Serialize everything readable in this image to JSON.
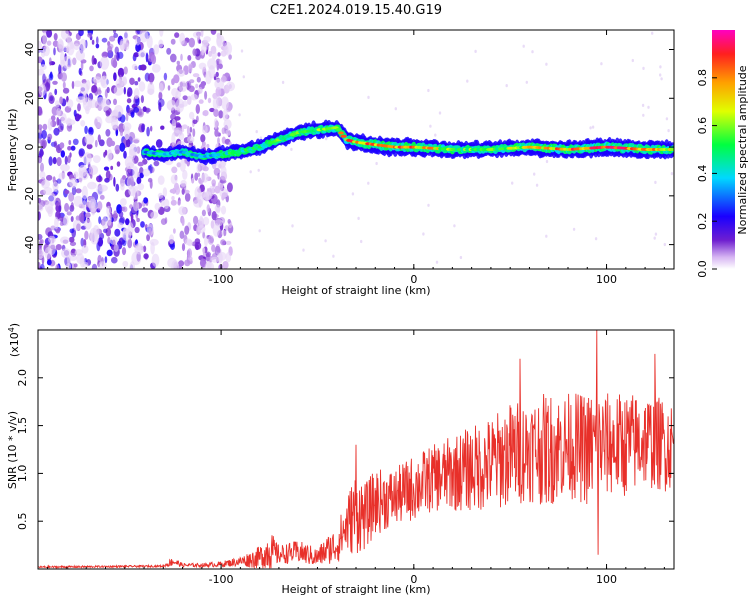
{
  "title": "C2E1.2024.019.15.40.G19",
  "chart_data": [
    {
      "type": "heatmap",
      "xlabel": "Height of straight line (km)",
      "ylabel": "Frequency (Hz)",
      "xlim": [
        -195,
        135
      ],
      "ylim": [
        -50,
        48
      ],
      "x_ticks": [
        -100,
        0,
        100
      ],
      "x_tick_labels": [
        "-100",
        "0",
        "100"
      ],
      "y_ticks": [
        -40,
        -20,
        0,
        20,
        40
      ],
      "y_tick_labels": [
        "-40",
        "-20",
        "0",
        "20",
        "40"
      ],
      "colorbar": {
        "label": "Normalized spectral amplitude",
        "range": [
          0,
          1
        ],
        "ticks": [
          0.0,
          0.2,
          0.4,
          0.6,
          0.8
        ],
        "tick_labels": [
          "0.0",
          "0.2",
          "0.4",
          "0.6",
          "0.8"
        ],
        "colormap": [
          "#ffffff",
          "#d6b4f2",
          "#6f1fd0",
          "#1a00ff",
          "#00d8ff",
          "#00ff40",
          "#e0ff00",
          "#ffa000",
          "#ff1f1f",
          "#ff00c0"
        ]
      },
      "ridge": {
        "x": [
          -140,
          -130,
          -120,
          -110,
          -100,
          -90,
          -80,
          -70,
          -60,
          -50,
          -40,
          -35,
          -30,
          -20,
          -10,
          0,
          20,
          40,
          60,
          80,
          100,
          120,
          135
        ],
        "y": [
          -2,
          -3,
          -2,
          -4,
          -3,
          -2,
          0,
          3,
          6,
          7,
          8,
          3,
          2,
          1,
          0,
          0,
          -1,
          -1,
          0,
          -1,
          0,
          -1,
          -1
        ],
        "amplitude": [
          0.3,
          0.35,
          0.4,
          0.35,
          0.45,
          0.5,
          0.5,
          0.55,
          0.55,
          0.6,
          0.65,
          0.8,
          0.85,
          0.85,
          0.9,
          0.85,
          0.6,
          0.55,
          0.7,
          0.8,
          0.9,
          0.85,
          0.6
        ]
      },
      "noise_region_x": [
        -195,
        -95
      ]
    },
    {
      "type": "line",
      "xlabel": "Height of straight line (km)",
      "ylabel": "SNR (10 * v/v)",
      "y_scale_label": "(x10",
      "y_scale_exponent": "4",
      "y_scale_suffix": ")",
      "xlim": [
        -195,
        135
      ],
      "ylim": [
        0,
        2.5
      ],
      "x_ticks": [
        -100,
        0,
        100
      ],
      "x_tick_labels": [
        "-100",
        "0",
        "100"
      ],
      "y_ticks": [
        0.5,
        1.0,
        1.5,
        2.0
      ],
      "y_tick_labels": [
        "0.5",
        "1.0",
        "1.5",
        "2.0"
      ],
      "line_color": "#e8302a",
      "envelope": {
        "x": [
          -195,
          -130,
          -125,
          -120,
          -110,
          -100,
          -90,
          -80,
          -75,
          -70,
          -60,
          -50,
          -45,
          -40,
          -35,
          -30,
          -25,
          -20,
          -10,
          0,
          10,
          20,
          30,
          40,
          50,
          60,
          70,
          80,
          90,
          95,
          100,
          110,
          120,
          130,
          135
        ],
        "mean": [
          0.02,
          0.03,
          0.08,
          0.04,
          0.04,
          0.05,
          0.08,
          0.12,
          0.2,
          0.15,
          0.18,
          0.12,
          0.2,
          0.25,
          0.45,
          0.6,
          0.55,
          0.7,
          0.75,
          0.85,
          0.95,
          1.0,
          1.05,
          1.1,
          1.2,
          1.25,
          1.25,
          1.3,
          1.25,
          1.3,
          1.3,
          1.3,
          1.35,
          1.3,
          1.3
        ],
        "amp": [
          0.01,
          0.01,
          0.05,
          0.02,
          0.02,
          0.03,
          0.05,
          0.12,
          0.22,
          0.1,
          0.12,
          0.1,
          0.15,
          0.2,
          0.3,
          0.45,
          0.35,
          0.35,
          0.3,
          0.35,
          0.35,
          0.4,
          0.45,
          0.5,
          0.55,
          0.55,
          0.6,
          0.55,
          0.6,
          0.6,
          0.55,
          0.55,
          0.5,
          0.5,
          0.45
        ]
      },
      "peaks": [
        {
          "x": -30,
          "y": 1.3
        },
        {
          "x": 55,
          "y": 2.2
        },
        {
          "x": 95,
          "y": 2.5
        },
        {
          "x": 125,
          "y": 2.25
        }
      ]
    }
  ]
}
